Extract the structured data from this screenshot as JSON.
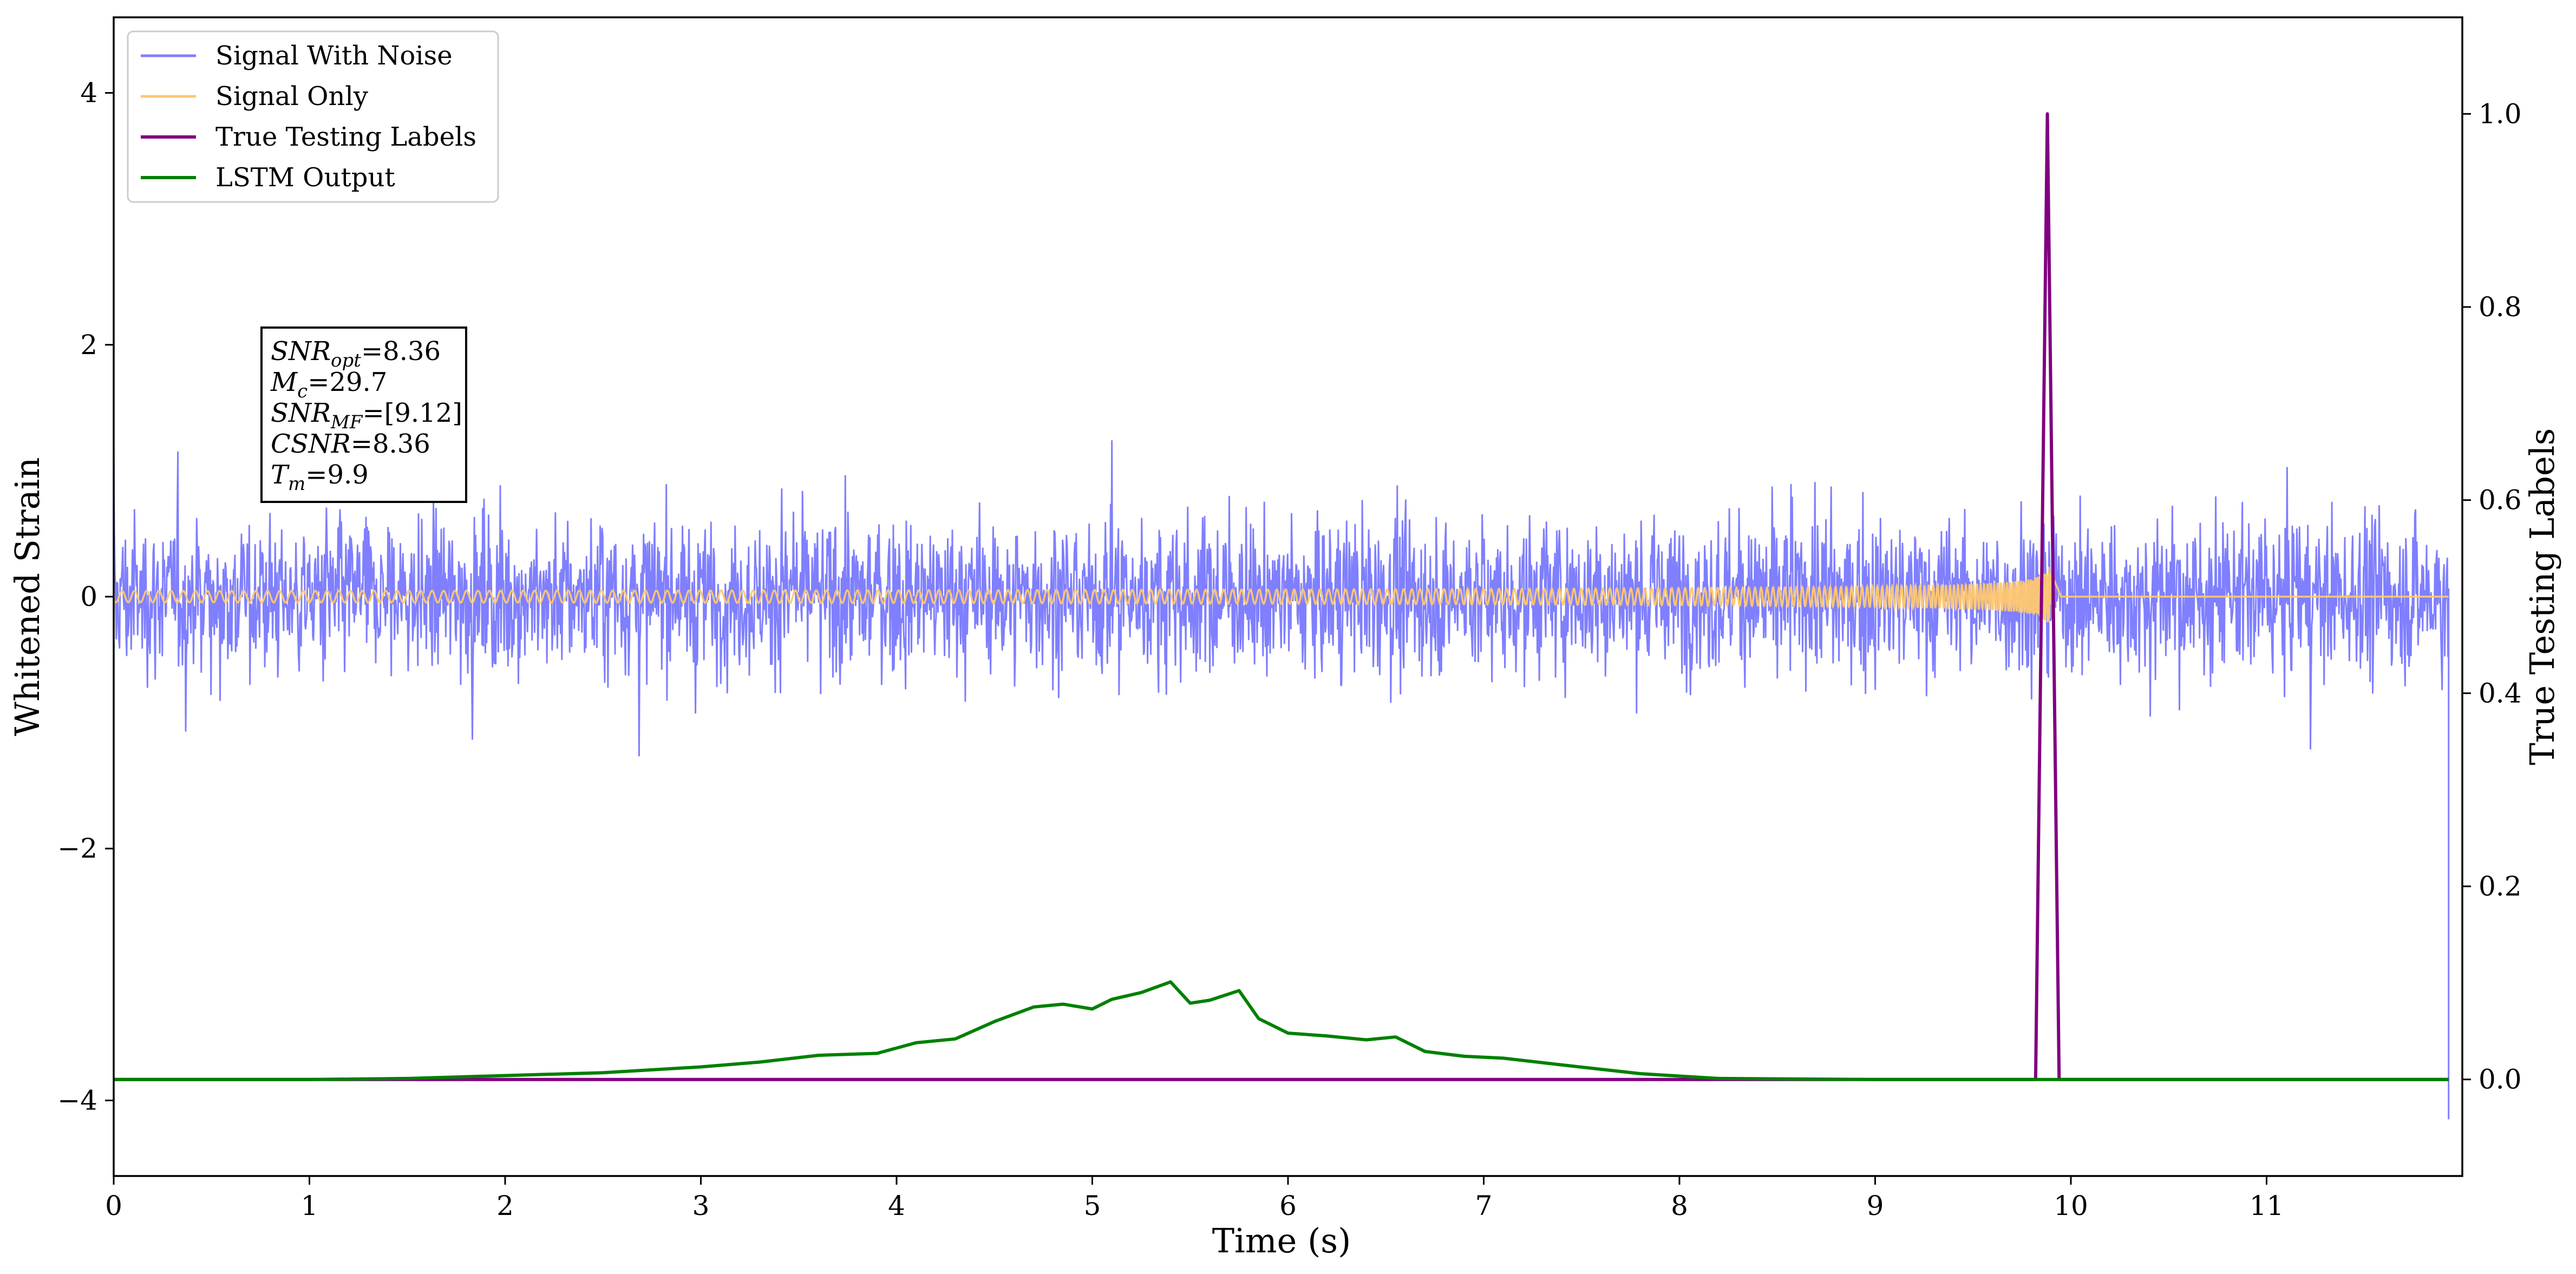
{
  "chart_data": {
    "type": "line",
    "title": "",
    "xlabel": "Time (s)",
    "ylabel_left": "Whitened Strain",
    "ylabel_right": "True Testing Labels",
    "xlim": [
      0,
      12
    ],
    "ylim_left": [
      -4.6,
      4.6
    ],
    "ylim_right": [
      -0.1,
      1.1
    ],
    "xticks": [
      0,
      1,
      2,
      3,
      4,
      5,
      6,
      7,
      8,
      9,
      10,
      11
    ],
    "xtick_labels": [
      "0",
      "1",
      "2",
      "3",
      "4",
      "5",
      "6",
      "7",
      "8",
      "9",
      "10",
      "11"
    ],
    "yticks_left": [
      -4,
      -2,
      0,
      2,
      4
    ],
    "ytick_labels_left": [
      "−4",
      "−2",
      "0",
      "2",
      "4"
    ],
    "yticks_right": [
      0.0,
      0.2,
      0.4,
      0.6,
      0.8,
      1.0
    ],
    "ytick_labels_right": [
      "0.0",
      "0.2",
      "0.4",
      "0.6",
      "0.8",
      "1.0"
    ],
    "grid": false,
    "legend": "top-left",
    "series": [
      {
        "name": "Signal With Noise",
        "axis": "left",
        "color": "#7f7fff",
        "kind": "noise",
        "noise_std": 0.3,
        "noise_peak": 1.25
      },
      {
        "name": "Signal Only",
        "axis": "left",
        "color": "#ffc870",
        "kind": "chirp",
        "merger_time": 9.9,
        "peak_amplitude": 0.32
      },
      {
        "name": "True Testing Labels",
        "axis": "right",
        "color": "#800080",
        "x": [
          0,
          9.82,
          9.88,
          9.94,
          11.93
        ],
        "y": [
          0,
          0,
          1.0,
          0,
          0
        ]
      },
      {
        "name": "LSTM Output",
        "axis": "right",
        "color": "#008000",
        "x": [
          0,
          1.0,
          1.5,
          2.0,
          2.5,
          3.0,
          3.3,
          3.6,
          3.9,
          4.1,
          4.3,
          4.5,
          4.7,
          4.85,
          5.0,
          5.1,
          5.25,
          5.4,
          5.5,
          5.6,
          5.75,
          5.85,
          6.0,
          6.2,
          6.4,
          6.55,
          6.7,
          6.9,
          7.1,
          7.4,
          7.8,
          8.2,
          9.0,
          11.93
        ],
        "y": [
          0,
          0,
          0.001,
          0.004,
          0.007,
          0.013,
          0.018,
          0.025,
          0.027,
          0.038,
          0.042,
          0.06,
          0.075,
          0.078,
          0.073,
          0.083,
          0.09,
          0.101,
          0.079,
          0.082,
          0.092,
          0.063,
          0.048,
          0.045,
          0.041,
          0.044,
          0.029,
          0.024,
          0.022,
          0.015,
          0.006,
          0.001,
          0,
          0
        ]
      }
    ],
    "annotation": {
      "lines": [
        {
          "sym": "SNR",
          "sub": "opt",
          "value": "=8.36"
        },
        {
          "sym": "M",
          "sub": "c",
          "value": "=29.7"
        },
        {
          "sym": "SNR",
          "sub": "MF",
          "value": "=[9.12]"
        },
        {
          "sym": "CSNR",
          "sub": "",
          "value": "=8.36"
        },
        {
          "sym": "T",
          "sub": "m",
          "value": "=9.9"
        }
      ]
    }
  }
}
